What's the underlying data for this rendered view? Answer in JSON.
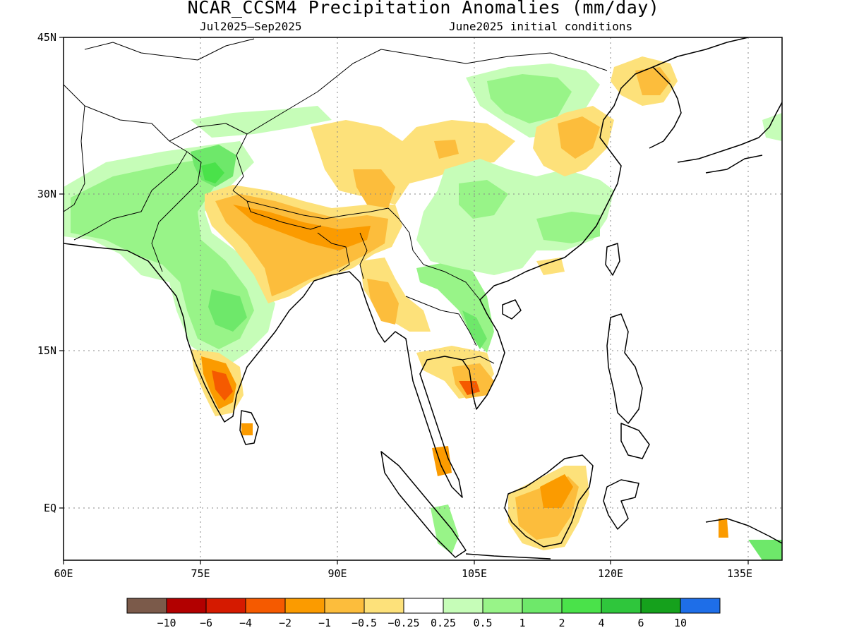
{
  "title": "NCAR_CCSM4 Precipitation Anomalies (mm/day)",
  "subtitle_left": "Jul2025–Sep2025",
  "subtitle_right": "June2025 initial conditions",
  "axes": {
    "lat_labels": [
      "45N",
      "30N",
      "15N",
      "EQ"
    ],
    "lon_labels": [
      "60E",
      "75E",
      "90E",
      "105E",
      "120E",
      "135E"
    ]
  },
  "colorbar": {
    "colors": [
      "#7b5a4a",
      "#b20000",
      "#d51a00",
      "#f55a00",
      "#fb9b00",
      "#fcbd3c",
      "#fde17a",
      "#ffffff",
      "#c6fdb8",
      "#98f488",
      "#6ee86a",
      "#4ae24a",
      "#2fc63c",
      "#15a11c",
      "#1e6ee8"
    ],
    "tick_labels": [
      "−10",
      "−6",
      "−4",
      "−2",
      "−1",
      "−0.5",
      "−0.25",
      "0.25",
      "0.5",
      "1",
      "2",
      "4",
      "6",
      "10"
    ]
  },
  "colors": {
    "brown": "#7b5a4a",
    "dark_red": "#b20000",
    "red": "#d51a00",
    "red_orange": "#f55a00",
    "orange": "#fb9b00",
    "light_orange": "#fcbd3c",
    "yellow": "#fde17a",
    "white": "#ffffff",
    "pale_green": "#c6fdb8",
    "light_green": "#98f488",
    "green": "#6ee86a",
    "bright_green": "#4ae24a",
    "mid_green": "#2fc63c",
    "dark_green": "#15a11c",
    "blue": "#1e6ee8"
  }
}
